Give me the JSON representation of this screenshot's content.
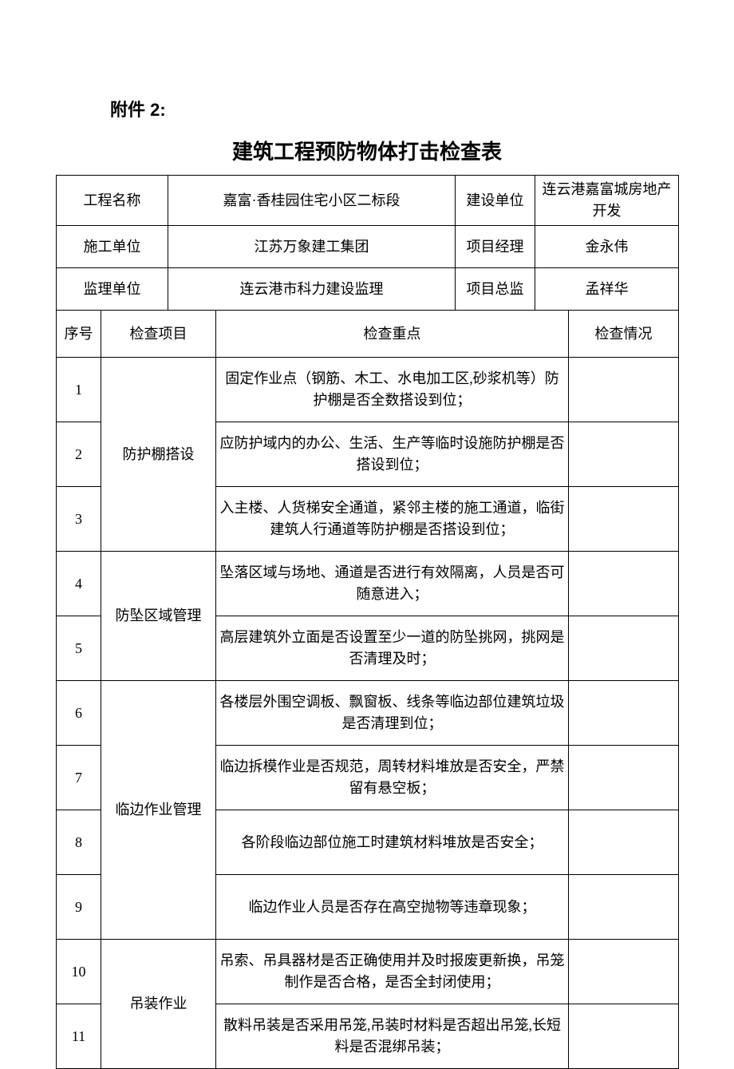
{
  "attachment_label": "附件 2:",
  "title": "建筑工程预防物体打击检查表",
  "header": {
    "project_name_label": "工程名称",
    "project_name": "嘉富·香桂园住宅小区二标段",
    "construction_unit_label": "建设单位",
    "construction_unit": "连云港嘉富城房地产开发",
    "contractor_label": "施工单位",
    "contractor": "江苏万象建工集团",
    "pm_label": "项目经理",
    "pm": "金永伟",
    "supervisor_unit_label": "监理单位",
    "supervisor_unit": "连云港市科力建设监理",
    "chief_supervisor_label": "项目总监",
    "chief_supervisor": "孟祥华"
  },
  "columns": {
    "seq": "序号",
    "item": "检查项目",
    "focus": "检查重点",
    "status": "检查情况"
  },
  "groups": [
    {
      "name": "防护棚搭设",
      "rows": [
        {
          "seq": "1",
          "focus": "固定作业点（钢筋、木工、水电加工区,砂浆机等）防护棚是否全数搭设到位；",
          "status": ""
        },
        {
          "seq": "2",
          "focus": "应防护域内的办公、生活、生产等临时设施防护棚是否搭设到位；",
          "status": ""
        },
        {
          "seq": "3",
          "focus": "入主楼、人货梯安全通道，紧邻主楼的施工通道，临街建筑人行通道等防护棚是否搭设到位；",
          "status": ""
        }
      ]
    },
    {
      "name": "防坠区域管理",
      "rows": [
        {
          "seq": "4",
          "focus": "坠落区域与场地、通道是否进行有效隔离，人员是否可随意进入；",
          "status": ""
        },
        {
          "seq": "5",
          "focus": "高层建筑外立面是否设置至少一道的防坠挑网，挑网是否清理及时；",
          "status": ""
        }
      ]
    },
    {
      "name": "临边作业管理",
      "rows": [
        {
          "seq": "6",
          "focus": "各楼层外围空调板、飘窗板、线条等临边部位建筑垃圾是否清理到位；",
          "status": ""
        },
        {
          "seq": "7",
          "focus": "临边拆模作业是否规范，周转材料堆放是否安全，严禁留有悬空板；",
          "status": ""
        },
        {
          "seq": "8",
          "focus": "各阶段临边部位施工时建筑材料堆放是否安全；",
          "status": ""
        },
        {
          "seq": "9",
          "focus": "临边作业人员是否存在高空抛物等违章现象；",
          "status": ""
        }
      ]
    },
    {
      "name": "吊装作业",
      "rows": [
        {
          "seq": "10",
          "focus": "吊索、吊具器材是否正确使用并及时报废更新换，吊笼制作是否合格，是否全封闭使用；",
          "status": ""
        },
        {
          "seq": "11",
          "focus": "散料吊装是否采用吊笼,吊装时材料是否超出吊笼,长短料是否混绑吊装；",
          "status": ""
        }
      ]
    }
  ]
}
